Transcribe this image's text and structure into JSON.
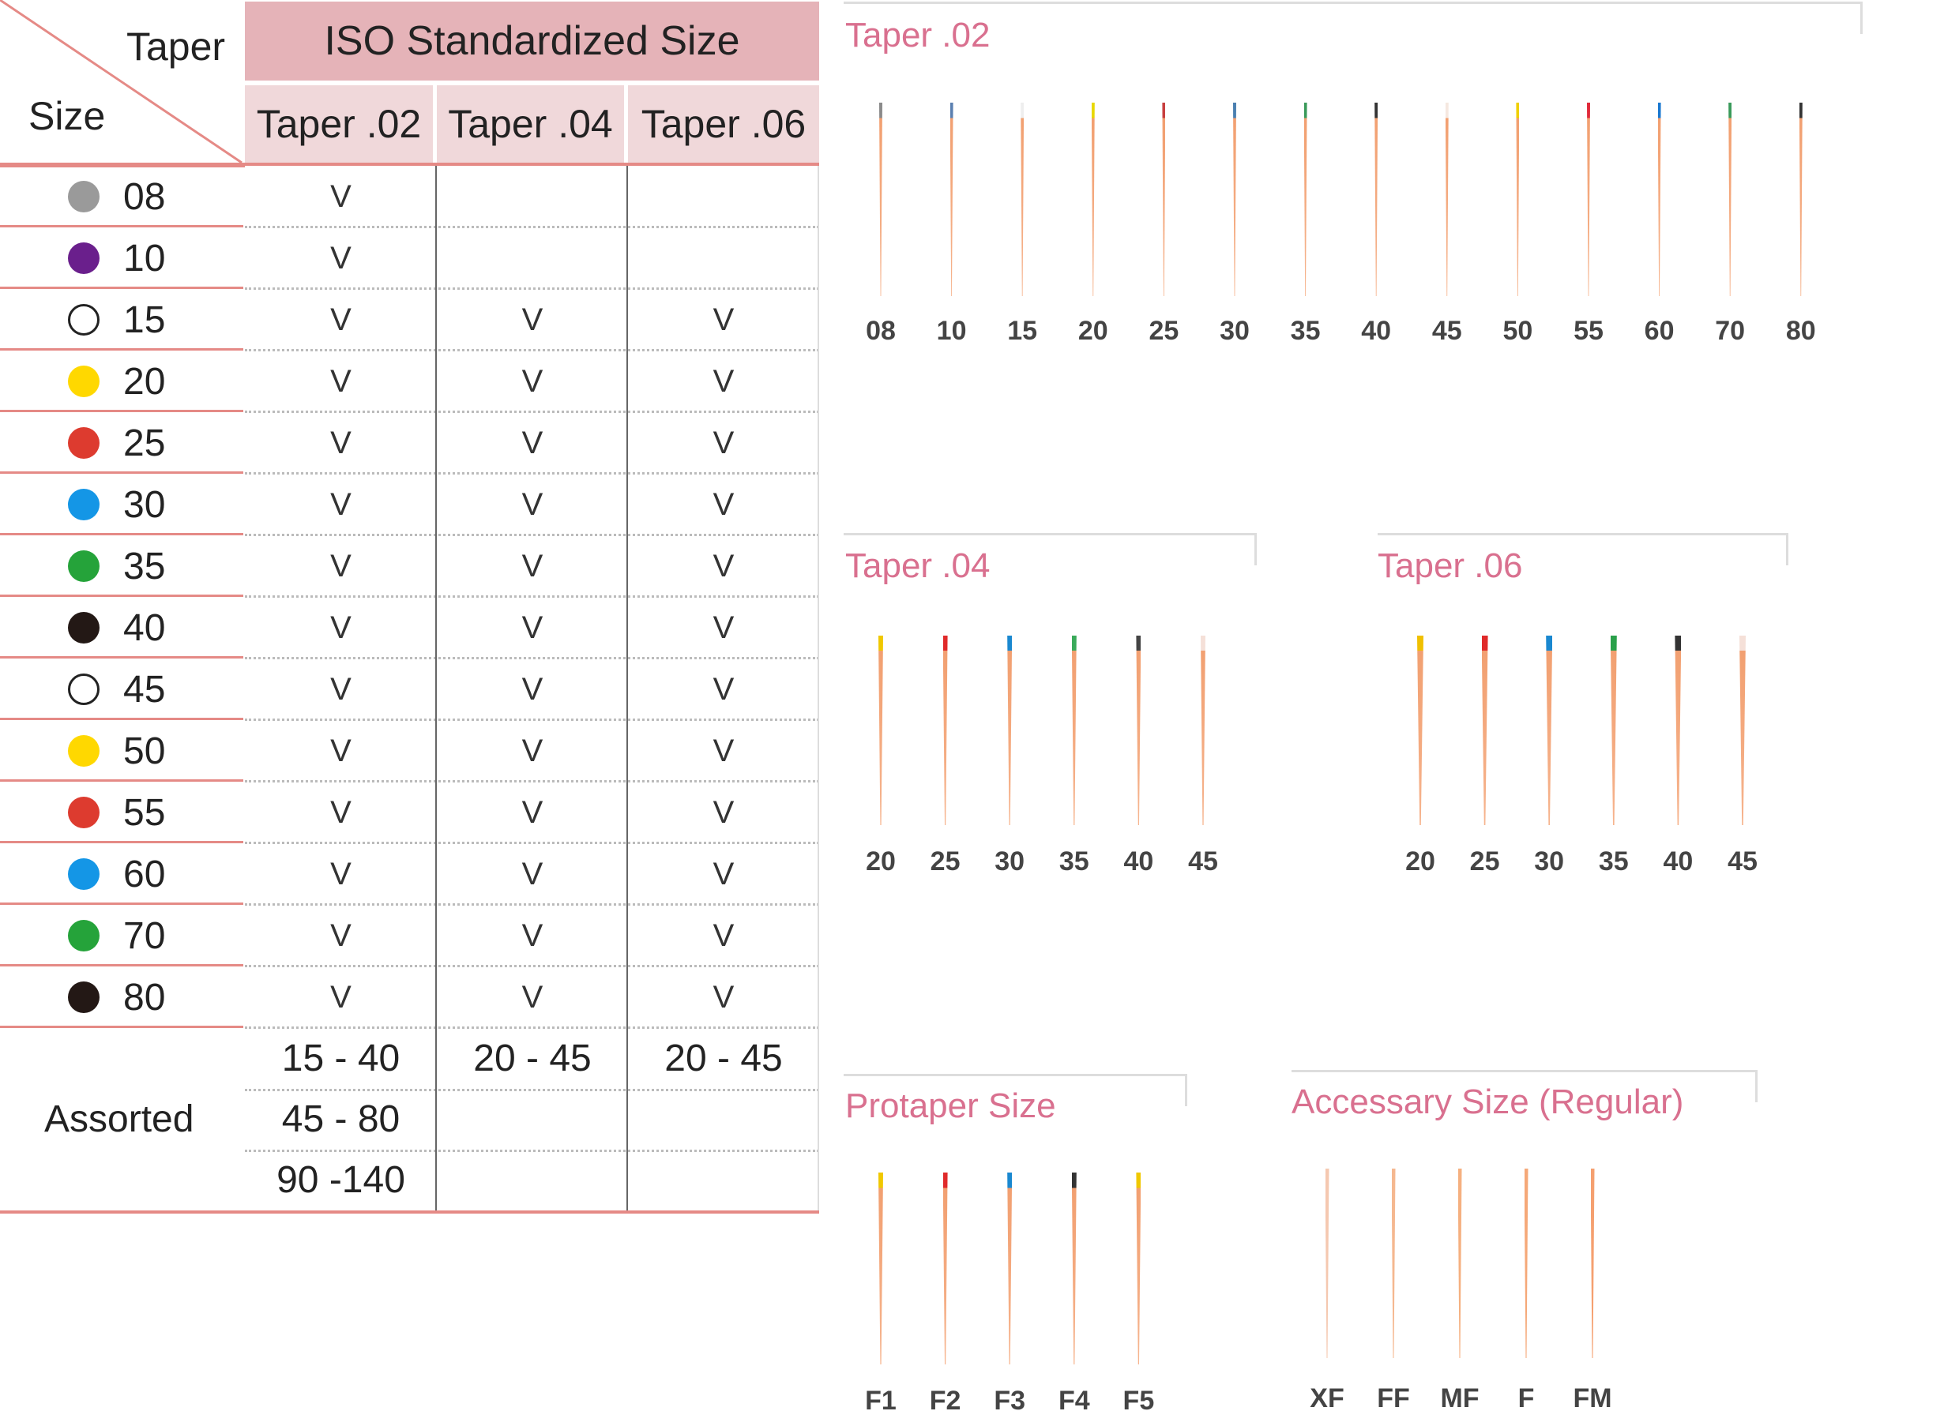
{
  "table": {
    "corner_taper": "Taper",
    "corner_size": "Size",
    "header": "ISO Standardized Size",
    "columns": [
      "Taper .02",
      "Taper .04",
      "Taper .06"
    ],
    "rows": [
      {
        "size": "08",
        "color": "#9a9a9a",
        "outline": false,
        "marks": [
          "V",
          "",
          ""
        ]
      },
      {
        "size": "10",
        "color": "#6a1f8c",
        "outline": false,
        "marks": [
          "V",
          "",
          ""
        ]
      },
      {
        "size": "15",
        "color": "#ffffff",
        "outline": true,
        "marks": [
          "V",
          "V",
          "V"
        ]
      },
      {
        "size": "20",
        "color": "#ffd800",
        "outline": false,
        "marks": [
          "V",
          "V",
          "V"
        ]
      },
      {
        "size": "25",
        "color": "#dd3b2f",
        "outline": false,
        "marks": [
          "V",
          "V",
          "V"
        ]
      },
      {
        "size": "30",
        "color": "#1496e6",
        "outline": false,
        "marks": [
          "V",
          "V",
          "V"
        ]
      },
      {
        "size": "35",
        "color": "#25a33a",
        "outline": false,
        "marks": [
          "V",
          "V",
          "V"
        ]
      },
      {
        "size": "40",
        "color": "#231815",
        "outline": false,
        "marks": [
          "V",
          "V",
          "V"
        ]
      },
      {
        "size": "45",
        "color": "#ffffff",
        "outline": true,
        "marks": [
          "V",
          "V",
          "V"
        ]
      },
      {
        "size": "50",
        "color": "#ffd800",
        "outline": false,
        "marks": [
          "V",
          "V",
          "V"
        ]
      },
      {
        "size": "55",
        "color": "#dd3b2f",
        "outline": false,
        "marks": [
          "V",
          "V",
          "V"
        ]
      },
      {
        "size": "60",
        "color": "#1496e6",
        "outline": false,
        "marks": [
          "V",
          "V",
          "V"
        ]
      },
      {
        "size": "70",
        "color": "#25a33a",
        "outline": false,
        "marks": [
          "V",
          "V",
          "V"
        ]
      },
      {
        "size": "80",
        "color": "#231815",
        "outline": false,
        "marks": [
          "V",
          "V",
          "V"
        ]
      }
    ],
    "assorted_label": "Assorted",
    "assorted": [
      [
        "15 - 40",
        "20 - 45",
        "20 - 45"
      ],
      [
        "45 - 80",
        "",
        ""
      ],
      [
        "90 -140",
        "",
        ""
      ]
    ]
  },
  "panels": [
    {
      "title": "Taper .02",
      "files": [
        {
          "label": "08",
          "color": "#8a8a8a"
        },
        {
          "label": "10",
          "color": "#5a7fb0"
        },
        {
          "label": "15",
          "color": "#eeeeee"
        },
        {
          "label": "20",
          "color": "#e8d800"
        },
        {
          "label": "25",
          "color": "#c84040"
        },
        {
          "label": "30",
          "color": "#4a7fb0"
        },
        {
          "label": "35",
          "color": "#3a9a5a"
        },
        {
          "label": "40",
          "color": "#333333"
        },
        {
          "label": "45",
          "color": "#f5e8e0"
        },
        {
          "label": "50",
          "color": "#f0d000"
        },
        {
          "label": "55",
          "color": "#e02a3a"
        },
        {
          "label": "60",
          "color": "#1a78d0"
        },
        {
          "label": "70",
          "color": "#3a9a5a"
        },
        {
          "label": "80",
          "color": "#333333"
        }
      ]
    },
    {
      "title": "Taper .04",
      "files": [
        {
          "label": "20",
          "color": "#f0c800"
        },
        {
          "label": "25",
          "color": "#e02a2a"
        },
        {
          "label": "30",
          "color": "#1a88d0"
        },
        {
          "label": "35",
          "color": "#3aaa5a"
        },
        {
          "label": "40",
          "color": "#444444"
        },
        {
          "label": "45",
          "color": "#f5e0d8"
        }
      ]
    },
    {
      "title": "Taper .06",
      "files": [
        {
          "label": "20",
          "color": "#f0c000"
        },
        {
          "label": "25",
          "color": "#e02a2a"
        },
        {
          "label": "30",
          "color": "#1a88d0"
        },
        {
          "label": "35",
          "color": "#2aa04a"
        },
        {
          "label": "40",
          "color": "#333333"
        },
        {
          "label": "45",
          "color": "#f5e0d8"
        }
      ]
    },
    {
      "title": "Protaper Size",
      "files": [
        {
          "label": "F1",
          "color": "#f0c800"
        },
        {
          "label": "F2",
          "color": "#e02a2a"
        },
        {
          "label": "F3",
          "color": "#1a88d0"
        },
        {
          "label": "F4",
          "color": "#333333"
        },
        {
          "label": "F5",
          "color": "#f0c800"
        }
      ]
    },
    {
      "title": "Accessary Size (Regular)",
      "files": [
        {
          "label": "XF",
          "color": "#f5c8b0"
        },
        {
          "label": "FF",
          "color": "#f5b890"
        },
        {
          "label": "MF",
          "color": "#f5b080"
        },
        {
          "label": "F",
          "color": "#f5a878"
        },
        {
          "label": "FM",
          "color": "#f5a070"
        }
      ]
    }
  ]
}
